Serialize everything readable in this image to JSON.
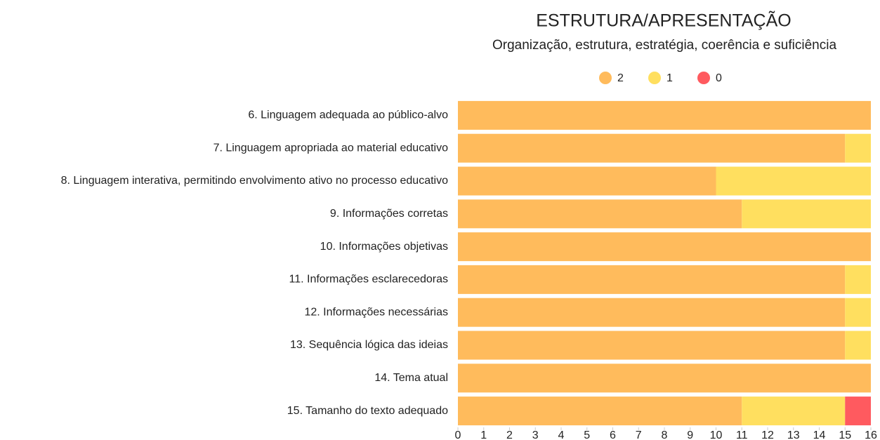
{
  "chart_data": {
    "type": "stacked-bar-horizontal",
    "title": "ESTRUTURA/APRESENTAÇÃO",
    "subtitle": "Organização, estrutura, estratégia, coerência e suficiência",
    "categories": [
      "6. Linguagem adequada ao público-alvo",
      "7. Linguagem apropriada ao material educativo",
      "8. Linguagem interativa, permitindo envolvimento ativo no processo educativo",
      "9. Informações corretas",
      "10. Informações objetivas",
      "11. Informações esclarecedoras",
      "12. Informações necessárias",
      "13. Sequência lógica das ideias",
      "14. Tema atual",
      "15. Tamanho do texto adequado"
    ],
    "series": [
      {
        "name": "2",
        "color": "#ffbb5c",
        "values": [
          16,
          15,
          10,
          11,
          16,
          15,
          15,
          15,
          16,
          11
        ]
      },
      {
        "name": "1",
        "color": "#ffdf5f",
        "values": [
          0,
          1,
          6,
          5,
          0,
          1,
          1,
          1,
          0,
          4
        ]
      },
      {
        "name": "0",
        "color": "#ff5a5f",
        "values": [
          0,
          0,
          0,
          0,
          0,
          0,
          0,
          0,
          0,
          1
        ]
      }
    ],
    "xlim": [
      0,
      16
    ],
    "xticks": [
      0,
      1,
      2,
      3,
      4,
      5,
      6,
      7,
      8,
      9,
      10,
      11,
      12,
      13,
      14,
      15,
      16
    ],
    "legend": "top"
  }
}
